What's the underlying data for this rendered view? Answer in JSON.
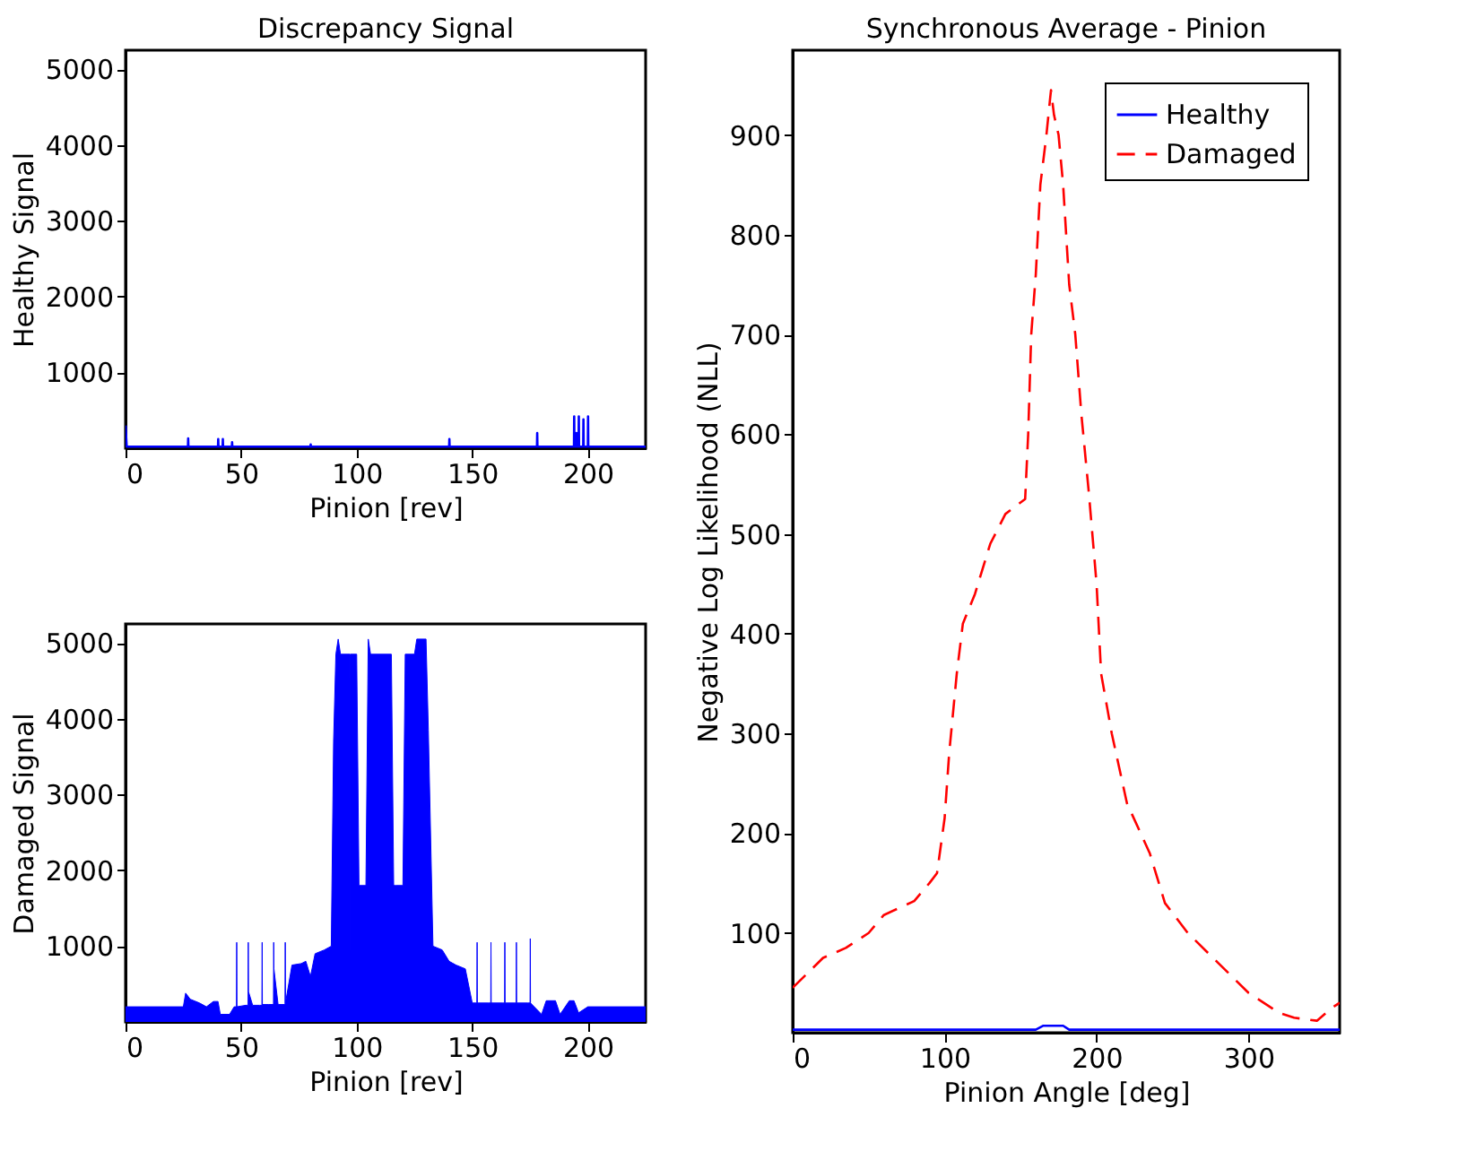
{
  "chart_data": [
    {
      "type": "line",
      "title": "Discrepancy Signal",
      "xlabel": "Pinion [rev]",
      "ylabel": "Healthy Signal",
      "xlim": [
        0,
        225
      ],
      "ylim": [
        0,
        5250
      ],
      "xticks": [
        0,
        50,
        100,
        150,
        200
      ],
      "yticks": [
        1000,
        2000,
        3000,
        4000,
        5000
      ],
      "grid": false,
      "legend": false,
      "series": [
        {
          "color": "#0000ff",
          "x": [
            0,
            0.5,
            27,
            27.1,
            27.2,
            40,
            40.1,
            40.2,
            42,
            42.1,
            42.2,
            46,
            46.1,
            46.2,
            80,
            80.1,
            80.2,
            140,
            140.1,
            140.2,
            178,
            178.1,
            178.2,
            194,
            194.1,
            194.2,
            195,
            195.1,
            195.2,
            196,
            196.1,
            196.2,
            198,
            198.1,
            198.2,
            200,
            200.1,
            200.2,
            225
          ],
          "values": [
            300,
            20,
            20,
            130,
            20,
            20,
            120,
            20,
            20,
            120,
            20,
            20,
            80,
            20,
            20,
            50,
            20,
            20,
            120,
            20,
            20,
            200,
            20,
            20,
            420,
            20,
            20,
            200,
            20,
            20,
            420,
            20,
            20,
            380,
            20,
            20,
            420,
            20,
            20
          ]
        }
      ]
    },
    {
      "type": "area",
      "xlabel": "Pinion [rev]",
      "ylabel": "Damaged Signal",
      "xlim": [
        0,
        225
      ],
      "ylim": [
        0,
        5250
      ],
      "xticks": [
        0,
        50,
        100,
        150,
        200
      ],
      "yticks": [
        1000,
        2000,
        3000,
        4000,
        5000
      ],
      "grid": false,
      "legend": false,
      "series": [
        {
          "color": "#0000ff",
          "x": [
            0,
            25,
            26,
            28,
            32,
            35,
            38,
            40,
            41,
            45,
            47,
            48,
            48.1,
            48.2,
            52,
            53,
            53.1,
            53.2,
            55,
            58,
            59,
            59.1,
            59.2,
            62,
            64,
            64.1,
            64.2,
            66,
            69,
            69.1,
            69.2,
            72,
            76,
            78,
            80,
            82,
            86,
            89,
            90,
            91,
            92,
            93,
            97,
            97.1,
            97.2,
            100,
            101,
            104,
            105,
            106,
            115,
            116,
            117,
            120,
            121,
            125,
            126,
            130,
            131,
            133,
            137,
            140,
            143,
            147,
            150,
            152,
            152.1,
            152.2,
            157,
            158,
            158.1,
            158.2,
            163,
            164,
            164.1,
            164.2,
            168,
            169,
            169.1,
            169.2,
            174,
            175,
            175.1,
            175.2,
            180,
            182,
            186,
            188,
            192,
            194,
            196,
            200,
            225
          ],
          "values": [
            200,
            200,
            380,
            300,
            250,
            200,
            270,
            270,
            100,
            100,
            200,
            200,
            1050,
            200,
            220,
            220,
            1050,
            400,
            220,
            220,
            220,
            1050,
            230,
            230,
            230,
            1050,
            700,
            230,
            230,
            1050,
            250,
            750,
            770,
            800,
            600,
            900,
            950,
            1000,
            3700,
            4850,
            5050,
            4850,
            4850,
            0,
            4850,
            4850,
            1800,
            1800,
            5050,
            4850,
            4850,
            1800,
            1800,
            1800,
            4850,
            4850,
            5050,
            5050,
            3850,
            1000,
            950,
            800,
            750,
            700,
            250,
            250,
            1050,
            250,
            250,
            250,
            1050,
            250,
            250,
            250,
            1050,
            250,
            250,
            250,
            1050,
            250,
            250,
            250,
            1100,
            250,
            100,
            280,
            280,
            100,
            280,
            280,
            120,
            200,
            200
          ]
        }
      ]
    },
    {
      "type": "line",
      "title": "Synchronous Average - Pinion",
      "xlabel": "Pinion Angle [deg]",
      "ylabel": "Negative Log Likelihood (NLL)",
      "xlim": [
        0,
        360
      ],
      "ylim": [
        0,
        985
      ],
      "xticks": [
        0,
        100,
        200,
        300
      ],
      "yticks": [
        100,
        200,
        300,
        400,
        500,
        600,
        700,
        800,
        900
      ],
      "grid": false,
      "legend": "top right",
      "series": [
        {
          "name": "Healthy",
          "color": "#0000ff",
          "line_style": "solid",
          "x": [
            0,
            160,
            165,
            178,
            182,
            360
          ],
          "values": [
            3,
            3,
            7,
            7,
            3,
            3
          ]
        },
        {
          "name": "Damaged",
          "color": "#ff0000",
          "line_style": "dashed",
          "x": [
            0,
            20,
            35,
            50,
            60,
            80,
            90,
            95,
            100,
            103,
            108,
            112,
            120,
            130,
            140,
            153,
            155,
            157,
            160,
            163,
            167,
            170,
            172,
            175,
            178,
            182,
            186,
            190,
            195,
            200,
            203,
            210,
            220,
            235,
            245,
            260,
            280,
            300,
            320,
            330,
            340,
            345,
            355,
            360
          ],
          "values": [
            45,
            75,
            85,
            100,
            118,
            132,
            150,
            160,
            215,
            280,
            360,
            410,
            440,
            490,
            520,
            535,
            600,
            700,
            760,
            850,
            900,
            945,
            920,
            900,
            850,
            750,
            700,
            620,
            540,
            450,
            360,
            300,
            230,
            180,
            130,
            100,
            70,
            40,
            20,
            15,
            13,
            12,
            25,
            30
          ]
        }
      ]
    }
  ]
}
